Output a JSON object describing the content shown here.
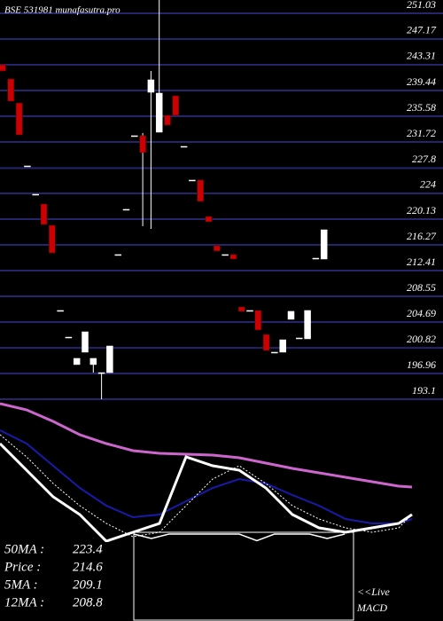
{
  "chart_data": [
    {
      "type": "candlestick",
      "title": "BSE 531981 munafasutra.pro",
      "categories": [
        null,
        null,
        null,
        null,
        null,
        null,
        null,
        null,
        null,
        null,
        null,
        null,
        null,
        null,
        null,
        null,
        null,
        null,
        null,
        null,
        null,
        null,
        null,
        null,
        null,
        null,
        null,
        null,
        null,
        null,
        null,
        null,
        null,
        null,
        null,
        null,
        null,
        null,
        null,
        null
      ],
      "open": [
        242.64,
        240.51,
        236.9,
        227.46,
        223.2,
        221.74,
        218.54,
        205.76,
        201.76,
        197.64,
        199.5,
        197.64,
        196.43,
        196.43,
        214.15,
        220.94,
        231.99,
        231.99,
        238.51,
        232.52,
        235.05,
        237.98,
        230.39,
        225.33,
        225.33,
        219.87,
        215.48,
        214.15,
        214.15,
        206.29,
        205.76,
        205.76,
        202.16,
        199.5,
        199.5,
        204.43,
        201.63,
        201.5,
        213.61,
        213.48
      ],
      "close": [
        241.71,
        237.18,
        232.12,
        227.46,
        223.2,
        218.67,
        214.41,
        205.76,
        201.76,
        198.57,
        202.56,
        198.57,
        196.43,
        200.43,
        214.15,
        220.94,
        231.99,
        229.46,
        240.38,
        238.38,
        233.59,
        235.05,
        230.39,
        225.33,
        222.14,
        219.07,
        214.68,
        214.15,
        213.48,
        205.62,
        205.76,
        202.83,
        199.76,
        199.5,
        201.36,
        205.63,
        201.63,
        205.76,
        213.61,
        217.87
      ],
      "high": [
        242.64,
        240.51,
        236.9,
        227.46,
        223.2,
        221.74,
        218.54,
        205.76,
        201.76,
        198.57,
        202.56,
        198.57,
        196.43,
        200.43,
        214.15,
        220.94,
        231.99,
        232.39,
        241.71,
        252.36,
        235.05,
        237.98,
        230.39,
        225.33,
        225.33,
        219.87,
        215.48,
        214.15,
        214.15,
        206.29,
        205.76,
        205.76,
        202.16,
        199.5,
        201.36,
        205.63,
        201.63,
        205.76,
        213.61,
        217.87
      ],
      "low": [
        241.71,
        237.18,
        232.12,
        227.46,
        223.2,
        218.67,
        214.41,
        205.76,
        201.76,
        197.64,
        199.5,
        196.43,
        192.44,
        196.43,
        214.15,
        220.94,
        231.99,
        218.41,
        218.01,
        232.52,
        233.59,
        235.05,
        230.39,
        225.33,
        222.14,
        219.07,
        214.68,
        214.15,
        213.48,
        205.62,
        205.76,
        202.83,
        199.76,
        199.5,
        199.5,
        204.43,
        201.63,
        201.5,
        213.61,
        213.48
      ],
      "up_color": "#ffffff",
      "down_color": "#cc0000",
      "ylim": [
        192.44,
        252.36
      ],
      "yticks": [
        251.03,
        247.17,
        243.31,
        239.44,
        235.58,
        231.72,
        227.8,
        224,
        220.13,
        216.27,
        212.41,
        208.55,
        204.69,
        200.82,
        196.96,
        193.1
      ],
      "grid": true
    },
    {
      "type": "line",
      "x": [
        0,
        30,
        60,
        90,
        120,
        150,
        180,
        210,
        240,
        270,
        300,
        330,
        360,
        390,
        420,
        450,
        465
      ],
      "xlim": [
        0,
        500
      ],
      "ylim": [
        0,
        250
      ],
      "series": [
        {
          "color": "#cc66cc",
          "width": 3,
          "values": [
            245,
            238,
            225,
            210,
            200,
            192,
            189,
            188,
            187,
            184,
            178,
            172,
            167,
            162,
            157,
            152,
            151
          ]
        },
        {
          "color": "#1a1aaa",
          "width": 2,
          "values": [
            215,
            200,
            175,
            150,
            130,
            117,
            120,
            135,
            150,
            160,
            155,
            142,
            130,
            115,
            110,
            110,
            115
          ]
        },
        {
          "color": "#ffffff",
          "width": 1,
          "dashed": true,
          "values": [
            210,
            185,
            155,
            130,
            110,
            95,
            100,
            130,
            160,
            175,
            155,
            130,
            115,
            105,
            100,
            105,
            120
          ]
        },
        {
          "color": "#ffffff",
          "width": 3,
          "values": [
            200,
            170,
            140,
            120,
            90,
            100,
            110,
            185,
            175,
            170,
            150,
            120,
            105,
            100,
            105,
            110,
            120
          ]
        }
      ],
      "stats": [
        {
          "label": "50MA :",
          "value": 223.4
        },
        {
          "label": "Price  :",
          "value": 214.6
        },
        {
          "label": "5MA :",
          "value": 209.1
        },
        {
          "label": "12MA :",
          "value": 208.8
        }
      ]
    },
    {
      "type": "line",
      "title": "MACD",
      "note": "<<Live",
      "x": [
        0,
        20,
        40,
        60,
        80,
        100,
        120,
        140,
        160,
        180,
        200,
        220,
        240
      ],
      "xlim": [
        0,
        250
      ],
      "ylim": [
        -10,
        10
      ],
      "values": [
        0,
        -1,
        0,
        0,
        0,
        0,
        0,
        -1.5,
        0,
        0,
        0,
        -1,
        0
      ],
      "color": "#ffffff"
    }
  ]
}
